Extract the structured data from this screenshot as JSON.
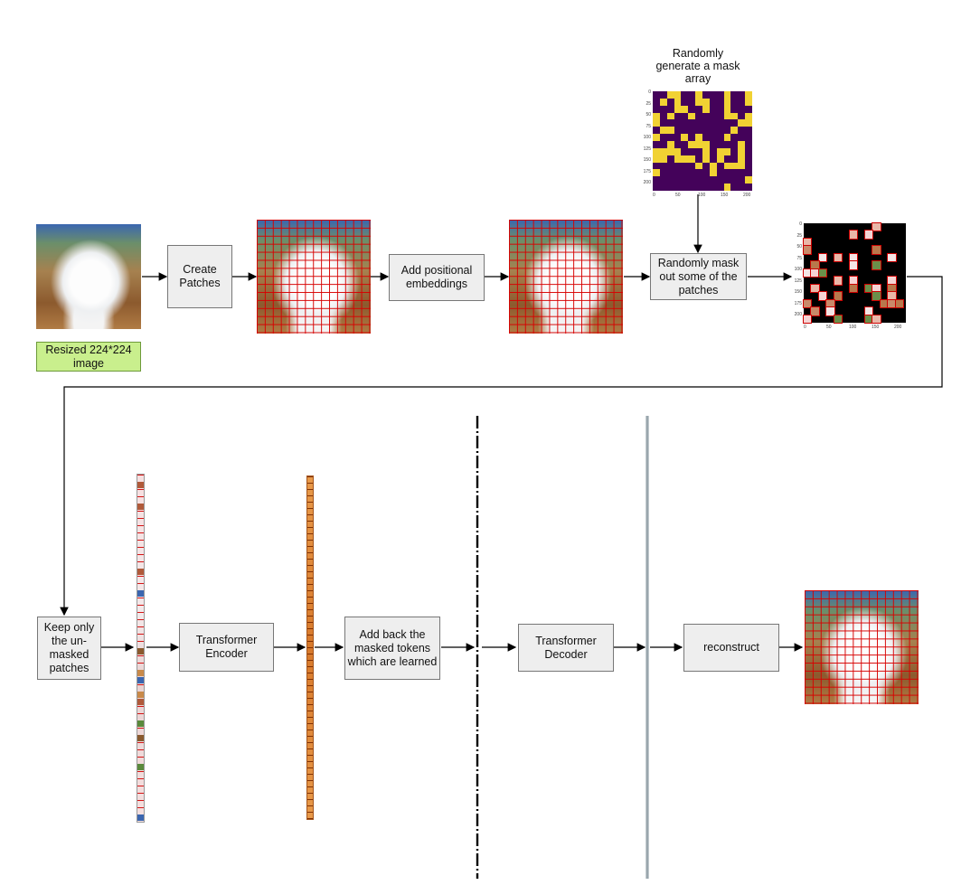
{
  "labels": {
    "resized": "Resized 224*224 image",
    "create_patches": "Create Patches",
    "add_positional": "Add positional embeddings",
    "random_mask_gen": "Randomly generate a mask array",
    "randomly_mask": "Randomly mask out some of the patches",
    "keep_unmasked": "Keep only the un-masked patches",
    "encoder": "Transformer Encoder",
    "add_back": "Add back the masked tokens which are learned",
    "decoder": "Transformer Decoder",
    "reconstruct": "reconstruct"
  },
  "mask_plot": {
    "y_ticks": [
      "0",
      "25",
      "50",
      "75",
      "100",
      "125",
      "150",
      "175",
      "200"
    ],
    "x_ticks": [
      "0",
      "50",
      "100",
      "150",
      "200"
    ]
  },
  "masked_plot": {
    "y_ticks": [
      "0",
      "25",
      "50",
      "75",
      "100",
      "125",
      "150",
      "175",
      "200"
    ],
    "x_ticks": [
      "0",
      "50",
      "100",
      "150",
      "200"
    ]
  },
  "colors": {
    "box_fill": "#eeeeee",
    "green_fill": "#c9ef8d",
    "grid_red": "#d70000",
    "mask_yellow": "#f1d233",
    "mask_purple": "#44025a"
  }
}
